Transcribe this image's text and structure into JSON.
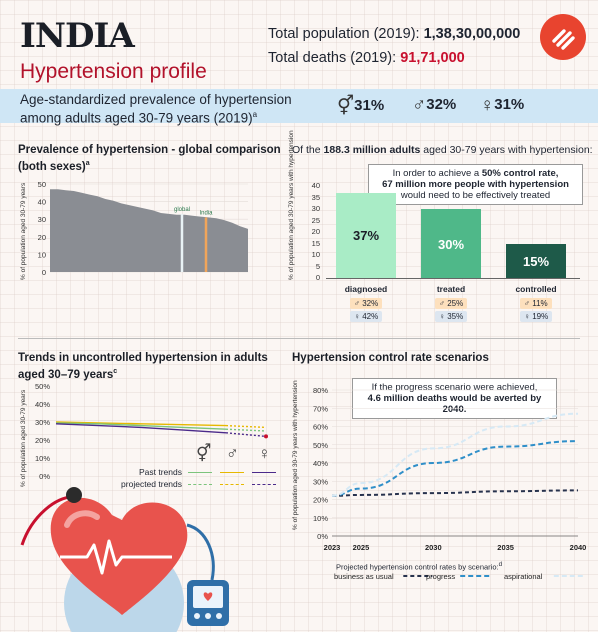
{
  "header": {
    "country": "INDIA",
    "subtitle": "Hypertension profile",
    "pop_label": "Total population (2019): ",
    "pop_value": "1,38,30,00,000",
    "deaths_label": "Total deaths (2019): ",
    "deaths_value": "91,71,000"
  },
  "band": {
    "line1": "Age-standardized prevalence of hypertension",
    "line2": "among adults aged 30-79 years (2019)",
    "sup": "a",
    "both_symbol": "⚥",
    "both_value": "31%",
    "male_symbol": "♂",
    "male_value": "32%",
    "female_symbol": "♀",
    "female_value": "31%"
  },
  "colors": {
    "accent_red": "#c8102e",
    "band_blue": "#cfe6f5",
    "area_grey": "#8a8d93",
    "diagnosed": "#a9ecc6",
    "treated": "#4fb889",
    "controlled": "#1e5a49",
    "male_line": "#e6b800",
    "female_line": "#4b2a8a",
    "both_line": "#7cc47c",
    "bau_line": "#27324d",
    "progress_line": "#2f8fc9",
    "aspirational_line": "#d6e9f5"
  },
  "chart_data": [
    {
      "type": "area",
      "title": "Prevalence of hypertension - global comparison",
      "subtitle": "(both sexes)",
      "title_sup": "a",
      "ylabel": "% of population aged 30-79 years",
      "ylim": [
        0,
        50
      ],
      "yticks": [
        "50",
        "40",
        "30",
        "20",
        "10",
        "0"
      ],
      "profile": [
        47,
        47,
        46.5,
        46,
        45,
        44,
        43,
        41.5,
        40.5,
        39,
        38,
        37,
        36,
        35,
        33.5,
        33,
        32.5,
        32.5,
        32,
        31.5,
        31,
        30.5,
        29.5,
        28,
        26,
        24.5
      ],
      "markers": [
        {
          "label": "global",
          "value": 33,
          "color": "#e9f3f6"
        },
        {
          "label": "India",
          "value": 31,
          "color": "#f0a55a"
        }
      ]
    },
    {
      "type": "bar",
      "title_prefix": "Of the ",
      "title_bold": "188.3 million adults",
      "title_suffix": " aged 30-79 years with hypertension:",
      "ylabel": "% of population aged 30-79 years with hypertension",
      "ylim": [
        0,
        40
      ],
      "yticks": [
        "40",
        "35",
        "30",
        "25",
        "20",
        "15",
        "10",
        "5",
        "0"
      ],
      "categories": [
        "diagnosed",
        "treated",
        "controlled"
      ],
      "values": [
        37,
        30,
        15
      ],
      "value_labels": [
        "37%",
        "30%",
        "15%"
      ],
      "male": [
        "32%",
        "25%",
        "11%"
      ],
      "female": [
        "42%",
        "35%",
        "19%"
      ],
      "callout_line1a": "In order to achieve a ",
      "callout_line1b": "50% control rate,",
      "callout_line2": "67 million more people with hypertension",
      "callout_line3": "would need to be effectively treated"
    },
    {
      "type": "line",
      "title": "Trends in uncontrolled hypertension in adults aged 30–79 years",
      "title_line1": "Trends in uncontrolled hypertension in adults",
      "title_line2": "aged 30–79 years",
      "title_sup": "c",
      "ylabel": "% of population aged 30-79 years",
      "ylim": [
        0,
        50
      ],
      "yticks": [
        "50%",
        "40%",
        "30%",
        "20%",
        "10%",
        "0%"
      ],
      "legend_past": "Past trends",
      "legend_projected": "projected trends",
      "legend_symbols": [
        "⚥",
        "♂",
        "♀"
      ],
      "series": [
        {
          "color": "#e6b800",
          "past": [
            30,
            29.5,
            29,
            28.5,
            28
          ],
          "projected": [
            28,
            27.5,
            27
          ]
        },
        {
          "color": "#7cc47c",
          "past": [
            29.5,
            29,
            28,
            27,
            26
          ],
          "projected": [
            26,
            25.5,
            25
          ]
        },
        {
          "color": "#4b2a8a",
          "past": [
            29,
            28,
            27,
            25.5,
            24
          ],
          "projected": [
            24,
            23,
            22
          ]
        }
      ]
    },
    {
      "type": "line",
      "title": "Hypertension control rate scenarios",
      "ylabel": "% of population aged 30-79 years with hypertension",
      "ylim": [
        0,
        80
      ],
      "yticks": [
        "80%",
        "70%",
        "60%",
        "50%",
        "40%",
        "30%",
        "20%",
        "10%",
        "0%"
      ],
      "x": [
        2023,
        2025,
        2030,
        2035,
        2040
      ],
      "xticks": [
        "2023",
        "2025",
        "2030",
        "2035",
        "2040"
      ],
      "callout_line1": "If the progress scenario were achieved,",
      "callout_line2": "4.6 million deaths would be averted by 2040.",
      "legend_title": "Projected hypertension control rates by scenario:",
      "legend_title_sup": "d",
      "series": [
        {
          "name": "business as usual",
          "values": [
            22,
            22.5,
            23.5,
            24.5,
            25
          ]
        },
        {
          "name": "progress",
          "values": [
            22,
            26,
            40,
            49,
            52
          ]
        },
        {
          "name": "aspirational",
          "values": [
            22,
            29,
            48,
            60,
            67
          ]
        }
      ]
    }
  ]
}
